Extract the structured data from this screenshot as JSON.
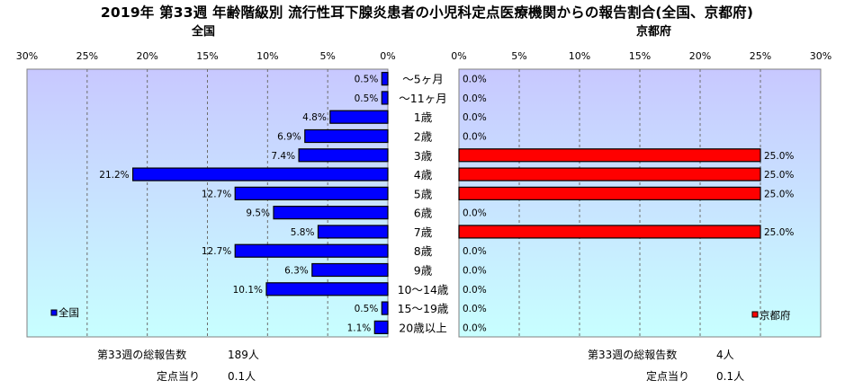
{
  "title": "2019年 第33週 年齢階級別 流行性耳下腺炎患者の小児科定点医療機関からの報告割合(全国、京都府)",
  "left_panel_title": "全国",
  "right_panel_title": "京都府",
  "left_legend": "全国",
  "right_legend": "京都府",
  "footer": {
    "national_total_label": "第33週の総報告数",
    "national_total_value": "189人",
    "national_per_label": "定点当り",
    "national_per_value": "0.1人",
    "kyoto_total_label": "第33週の総報告数",
    "kyoto_total_value": "4人",
    "kyoto_per_label": "定点当り",
    "kyoto_per_value": "0.1人"
  },
  "colors": {
    "national": "#0000ff",
    "kyoto": "#ff0000",
    "plot_top": "#c8c8ff",
    "plot_bottom": "#c8ffff"
  },
  "chart_data": [
    {
      "type": "bar",
      "orientation": "horizontal",
      "direction": "right-to-left",
      "title": "全国",
      "categories": [
        "～5ヶ月",
        "～11ヶ月",
        "1歳",
        "2歳",
        "3歳",
        "4歳",
        "5歳",
        "6歳",
        "7歳",
        "8歳",
        "9歳",
        "10～14歳",
        "15～19歳",
        "20歳以上"
      ],
      "series": [
        {
          "name": "全国",
          "values": [
            0.5,
            0.5,
            4.8,
            6.9,
            7.4,
            21.2,
            12.7,
            9.5,
            5.8,
            12.7,
            6.3,
            10.1,
            0.5,
            1.1
          ],
          "labels": [
            "0.5%",
            "0.5%",
            "4.8%",
            "6.9%",
            "7.4%",
            "21.2%",
            "12.7%",
            "9.5%",
            "5.8%",
            "12.7%",
            "6.3%",
            "10.1%",
            "0.5%",
            "1.1%"
          ]
        }
      ],
      "xlim": [
        0,
        30
      ],
      "ticks": [
        "30%",
        "25%",
        "20%",
        "15%",
        "10%",
        "5%",
        "0%"
      ],
      "legend": "bottom-left"
    },
    {
      "type": "bar",
      "orientation": "horizontal",
      "direction": "left-to-right",
      "title": "京都府",
      "categories": [
        "～5ヶ月",
        "～11ヶ月",
        "1歳",
        "2歳",
        "3歳",
        "4歳",
        "5歳",
        "6歳",
        "7歳",
        "8歳",
        "9歳",
        "10～14歳",
        "15～19歳",
        "20歳以上"
      ],
      "series": [
        {
          "name": "京都府",
          "values": [
            0,
            0,
            0,
            0,
            25,
            25,
            25,
            0,
            25,
            0,
            0,
            0,
            0,
            0
          ],
          "labels": [
            "0.0%",
            "0.0%",
            "0.0%",
            "0.0%",
            "25.0%",
            "25.0%",
            "25.0%",
            "0.0%",
            "25.0%",
            "0.0%",
            "0.0%",
            "0.0%",
            "0.0%",
            "0.0%"
          ]
        }
      ],
      "xlim": [
        0,
        30
      ],
      "ticks": [
        "0%",
        "5%",
        "10%",
        "15%",
        "20%",
        "25%",
        "30%"
      ],
      "legend": "bottom-right"
    }
  ]
}
